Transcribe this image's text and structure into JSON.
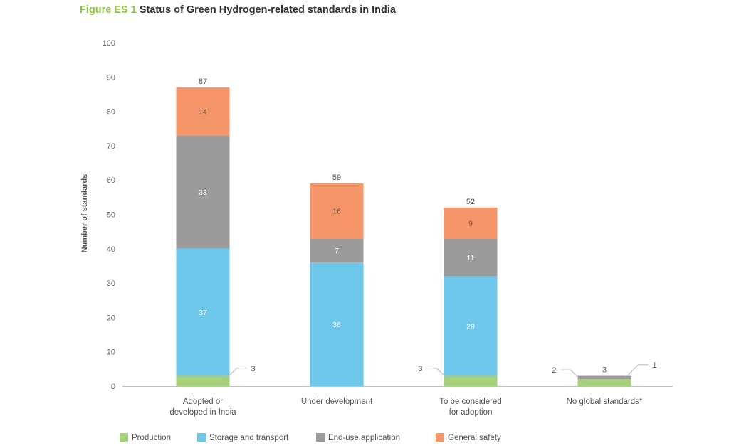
{
  "figure": {
    "number": "Figure ES 1",
    "title": "Status of Green Hydrogen-related standards in India"
  },
  "chart_data": {
    "type": "bar",
    "stacked": true,
    "categories": [
      [
        "Adopted or",
        "developed in India"
      ],
      [
        "Under development"
      ],
      [
        "To be considered",
        "for adoption"
      ],
      [
        "No global standards*"
      ]
    ],
    "series": [
      {
        "name": "Production",
        "color": "#a6d17a",
        "values": [
          3,
          0,
          3,
          2
        ],
        "labels": [
          "",
          "",
          "",
          ""
        ]
      },
      {
        "name": "Storage and transport",
        "color": "#6ec6ea",
        "values": [
          37,
          36,
          29,
          0
        ],
        "labels": [
          "37",
          "36",
          "29",
          ""
        ]
      },
      {
        "name": "End-use application",
        "color": "#9b9b9b",
        "values": [
          33,
          7,
          11,
          1
        ],
        "labels": [
          "33",
          "7",
          "11",
          ""
        ]
      },
      {
        "name": "General safety",
        "color": "#f4956a",
        "values": [
          14,
          16,
          9,
          0
        ],
        "labels": [
          "14",
          "16",
          "9",
          ""
        ]
      }
    ],
    "totals": [
      "87",
      "59",
      "52",
      "3"
    ],
    "callouts": [
      {
        "category": 0,
        "series": 0,
        "text": "3",
        "side": "right"
      },
      {
        "category": 2,
        "series": 0,
        "text": "3",
        "side": "left"
      },
      {
        "category": 3,
        "series": 0,
        "text": "2",
        "side": "left"
      },
      {
        "category": 3,
        "series": 2,
        "text": "1",
        "side": "right"
      }
    ],
    "ylabel": "Number of standards",
    "ylim": [
      0,
      100
    ],
    "yticks": [
      "0",
      "10",
      "20",
      "30",
      "40",
      "50",
      "60",
      "70",
      "80",
      "90",
      "100"
    ],
    "legend_position": "bottom",
    "grid": false
  }
}
